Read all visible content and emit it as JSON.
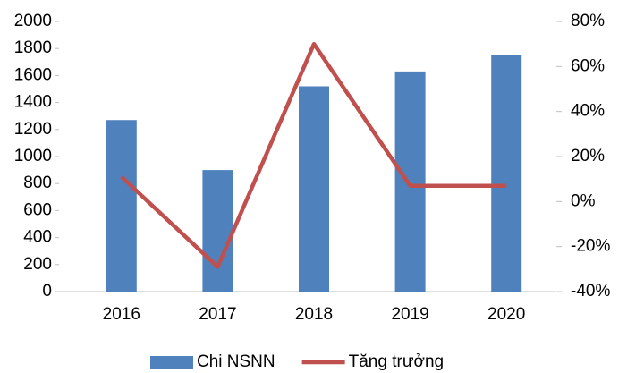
{
  "chart_data": {
    "type": "bar",
    "categories": [
      "2016",
      "2017",
      "2018",
      "2019",
      "2020"
    ],
    "series": [
      {
        "name": "Chi NSNN",
        "color": "#4f81bd",
        "values": [
          1270,
          900,
          1520,
          1630,
          1750
        ]
      },
      {
        "name": "Tăng trưởng",
        "color": "#c0504d",
        "type": "line",
        "axis": "y2",
        "values": [
          11,
          -29,
          70,
          7,
          7
        ]
      }
    ],
    "ylim": [
      0,
      2000
    ],
    "yticks": [
      0,
      200,
      400,
      600,
      800,
      1000,
      1200,
      1400,
      1600,
      1800,
      2000
    ],
    "y2lim": [
      -40,
      80
    ],
    "y2ticks": [
      {
        "value": -40,
        "label": "-40%"
      },
      {
        "value": -20,
        "label": "-20%"
      },
      {
        "value": 0,
        "label": "0%"
      },
      {
        "value": 20,
        "label": "20%"
      },
      {
        "value": 40,
        "label": "40%"
      },
      {
        "value": 60,
        "label": "60%"
      },
      {
        "value": 80,
        "label": "80%"
      }
    ],
    "grid": false,
    "legend": "bottom"
  }
}
